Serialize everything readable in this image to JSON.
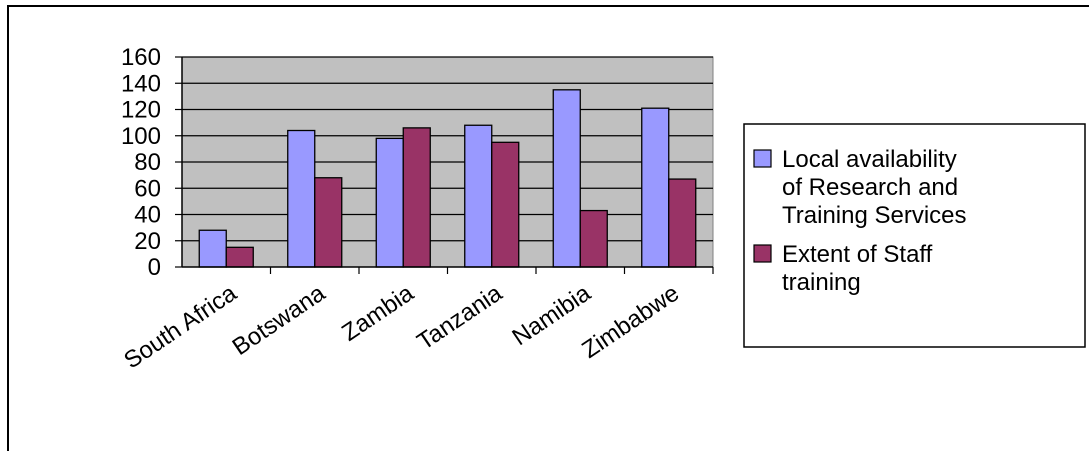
{
  "chart_data": {
    "type": "bar",
    "categories": [
      "South Africa",
      "Botswana",
      "Zambia",
      "Tanzania",
      "Namibia",
      "Zimbabwe"
    ],
    "series": [
      {
        "name": "Local availability of Research and Training Services",
        "name_lines": [
          "Local availability",
          "of Research and",
          "Training Services"
        ],
        "color": "#9999ff",
        "values": [
          28,
          104,
          98,
          108,
          135,
          121
        ]
      },
      {
        "name": "Extent of Staff training",
        "name_lines": [
          "Extent of Staff",
          "training"
        ],
        "color": "#993366",
        "values": [
          15,
          68,
          106,
          95,
          43,
          67
        ]
      }
    ],
    "ylim": [
      0,
      160
    ],
    "yticks": [
      "0",
      "20",
      "40",
      "60",
      "80",
      "100",
      "120",
      "140",
      "160"
    ],
    "plot_background": "#c0c0c0",
    "grid": true,
    "legend_position": "right",
    "title": "",
    "xlabel": "",
    "ylabel": ""
  }
}
